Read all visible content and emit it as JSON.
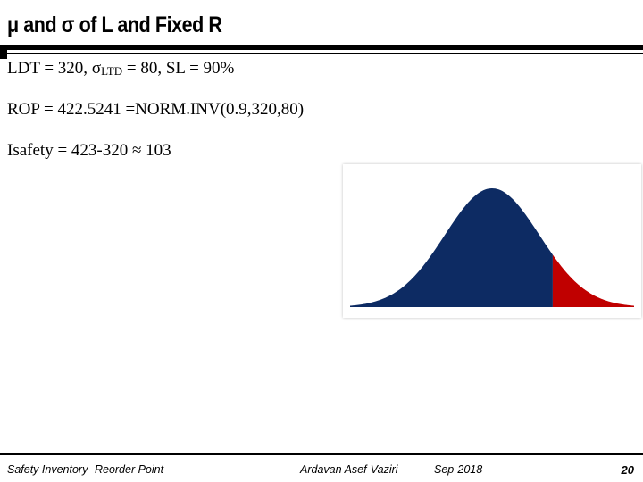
{
  "slide": {
    "title": "μ and σ of L and Fixed R",
    "line1": {
      "prefix": "LDT = 320, ",
      "sigma": "σ",
      "sub": "LTD",
      "suffix": " = 80, SL = 90%"
    },
    "line2": "ROP = 422.5241 =NORM.INV(0.9,320,80)",
    "line3": "Isafety = 423-320  ≈ 103"
  },
  "footer": {
    "left": "Safety Inventory- Reorder Point",
    "author": "Ardavan Asef-Vaziri",
    "date": "Sep-2018",
    "page": "20"
  },
  "chart_data": {
    "type": "area",
    "distribution": "normal",
    "mean": 320,
    "std": 80,
    "shaded_tail_start": 422.5241,
    "x_range": [
      80,
      560
    ],
    "colors": {
      "body": "#0d2b63",
      "tail": "#c00000"
    }
  }
}
